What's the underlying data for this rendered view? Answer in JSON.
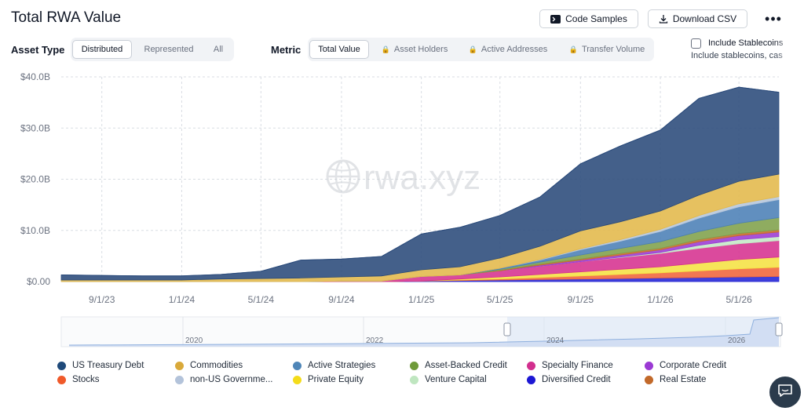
{
  "header": {
    "title": "Total RWA Value",
    "code_samples_label": "Code Samples",
    "download_csv_label": "Download CSV",
    "more_label": "•••"
  },
  "asset_type": {
    "label": "Asset Type",
    "options": [
      "Distributed",
      "Represented",
      "All"
    ],
    "selected": "Distributed"
  },
  "metric": {
    "label": "Metric",
    "options": [
      "Total Value",
      "Asset Holders",
      "Active Addresses",
      "Transfer Volume"
    ],
    "selected": "Total Value",
    "locked": [
      "Asset Holders",
      "Active Addresses",
      "Transfer Volume"
    ]
  },
  "stablecoins": {
    "checkbox_label": "Include Stablecoins",
    "sub_label": "Include stablecoins, cas",
    "checked": false
  },
  "watermark": "rwa.xyz",
  "chart_data": {
    "type": "area",
    "stacked": true,
    "x_tick_labels": [
      "9/1/23",
      "1/1/24",
      "5/1/24",
      "9/1/24",
      "1/1/25",
      "5/1/25",
      "9/1/25",
      "1/1/26",
      "5/1/26"
    ],
    "y_tick_labels": [
      "$0.00",
      "$10.0B",
      "$20.0B",
      "$30.0B",
      "$40.0B"
    ],
    "ylim": [
      0,
      40
    ],
    "y_unit": "$B",
    "grid": true,
    "dates": [
      "2023-07-01",
      "2023-09-01",
      "2023-11-01",
      "2024-01-01",
      "2024-03-01",
      "2024-05-01",
      "2024-07-01",
      "2024-09-01",
      "2024-11-01",
      "2025-01-01",
      "2025-03-01",
      "2025-05-01",
      "2025-07-01",
      "2025-09-01",
      "2025-11-01",
      "2026-01-01",
      "2026-03-01",
      "2026-05-01",
      "2026-07-01"
    ],
    "series": [
      {
        "name": "Diversified Credit",
        "color": "#2323d6",
        "values": [
          0,
          0,
          0,
          0,
          0,
          0,
          0,
          0,
          0,
          0.1,
          0.2,
          0.3,
          0.4,
          0.5,
          0.6,
          0.7,
          0.8,
          0.9,
          1.0
        ]
      },
      {
        "name": "Stocks",
        "color": "#f0643a",
        "values": [
          0,
          0,
          0,
          0,
          0,
          0,
          0,
          0,
          0,
          0,
          0.1,
          0.2,
          0.4,
          0.6,
          0.8,
          1.0,
          1.3,
          1.6,
          1.8
        ]
      },
      {
        "name": "Private Equity",
        "color": "#f5e142",
        "values": [
          0,
          0,
          0,
          0,
          0,
          0,
          0,
          0,
          0,
          0,
          0.2,
          0.4,
          0.6,
          0.8,
          1.0,
          1.2,
          1.5,
          1.8,
          2.0
        ]
      },
      {
        "name": "Specialty Finance",
        "color": "#d6318f",
        "values": [
          0,
          0,
          0,
          0,
          0,
          0,
          0,
          0.1,
          0.1,
          0.9,
          0.8,
          1.2,
          1.6,
          2.0,
          2.3,
          2.6,
          2.9,
          3.1,
          3.2
        ]
      },
      {
        "name": "Venture Capital",
        "color": "#c4e8c6",
        "values": [
          0,
          0,
          0,
          0,
          0,
          0,
          0,
          0,
          0,
          0,
          0,
          0,
          0,
          0,
          0.1,
          0.2,
          0.6,
          0.8,
          0.8
        ]
      },
      {
        "name": "Corporate Credit",
        "color": "#9b3ad4",
        "values": [
          0,
          0,
          0,
          0,
          0,
          0,
          0,
          0,
          0,
          0,
          0,
          0,
          0.2,
          0.3,
          0.4,
          0.5,
          0.7,
          0.8,
          0.9
        ]
      },
      {
        "name": "Real Estate",
        "color": "#c86a2a",
        "values": [
          0,
          0,
          0,
          0,
          0,
          0,
          0,
          0,
          0,
          0,
          0,
          0.1,
          0.2,
          0.2,
          0.3,
          0.3,
          0.4,
          0.4,
          0.4
        ]
      },
      {
        "name": "Asset-Backed Credit",
        "color": "#7fa04a",
        "values": [
          0,
          0,
          0,
          0,
          0,
          0,
          0,
          0,
          0,
          0,
          0,
          0.2,
          0.4,
          0.8,
          1.0,
          1.3,
          1.6,
          2.0,
          2.4
        ]
      },
      {
        "name": "Active Strategies",
        "color": "#4b80b6",
        "values": [
          0,
          0,
          0,
          0,
          0,
          0,
          0,
          0,
          0,
          0,
          0,
          0.2,
          0.4,
          1.0,
          1.4,
          2.0,
          2.6,
          3.2,
          3.5
        ]
      },
      {
        "name": "non-US Government Debt",
        "color": "#b5c6dc",
        "values": [
          0,
          0,
          0,
          0,
          0,
          0,
          0,
          0,
          0,
          0,
          0,
          0,
          0.1,
          0.2,
          0.3,
          0.4,
          0.5,
          0.6,
          0.6
        ]
      },
      {
        "name": "Commodities",
        "color": "#e2b84a",
        "values": [
          0.3,
          0.3,
          0.3,
          0.3,
          0.5,
          0.6,
          0.7,
          0.8,
          1.0,
          1.3,
          1.6,
          2.0,
          2.6,
          3.5,
          3.5,
          3.6,
          4.0,
          4.4,
          4.4
        ]
      },
      {
        "name": "US Treasury Debt",
        "color": "#2a4a7a",
        "values": [
          1.0,
          0.9,
          0.8,
          0.8,
          0.9,
          1.4,
          3.5,
          3.5,
          3.8,
          7.0,
          7.7,
          8.3,
          9.6,
          13.1,
          14.8,
          15.8,
          18.9,
          18.4,
          16.0
        ]
      }
    ]
  },
  "navigator": {
    "year_labels": [
      "2020",
      "2022",
      "2024",
      "2026"
    ]
  },
  "legend": [
    {
      "name": "US Treasury Debt",
      "color": "#1f4a7a"
    },
    {
      "name": "Commodities",
      "color": "#d9a93a"
    },
    {
      "name": "Active Strategies",
      "color": "#4f86b8"
    },
    {
      "name": "Asset-Backed Credit",
      "color": "#6f9a3a"
    },
    {
      "name": "Specialty Finance",
      "color": "#d22f8e"
    },
    {
      "name": "Corporate Credit",
      "color": "#9b3ad4"
    },
    {
      "name": "Stocks",
      "color": "#f05a2a"
    },
    {
      "name": "non-US Governme...",
      "color": "#b3c3da"
    },
    {
      "name": "Private Equity",
      "color": "#f4dc1a"
    },
    {
      "name": "Venture Capital",
      "color": "#bfe6c0"
    },
    {
      "name": "Diversified Credit",
      "color": "#1c17d4"
    },
    {
      "name": "Real Estate",
      "color": "#c2692a"
    }
  ]
}
